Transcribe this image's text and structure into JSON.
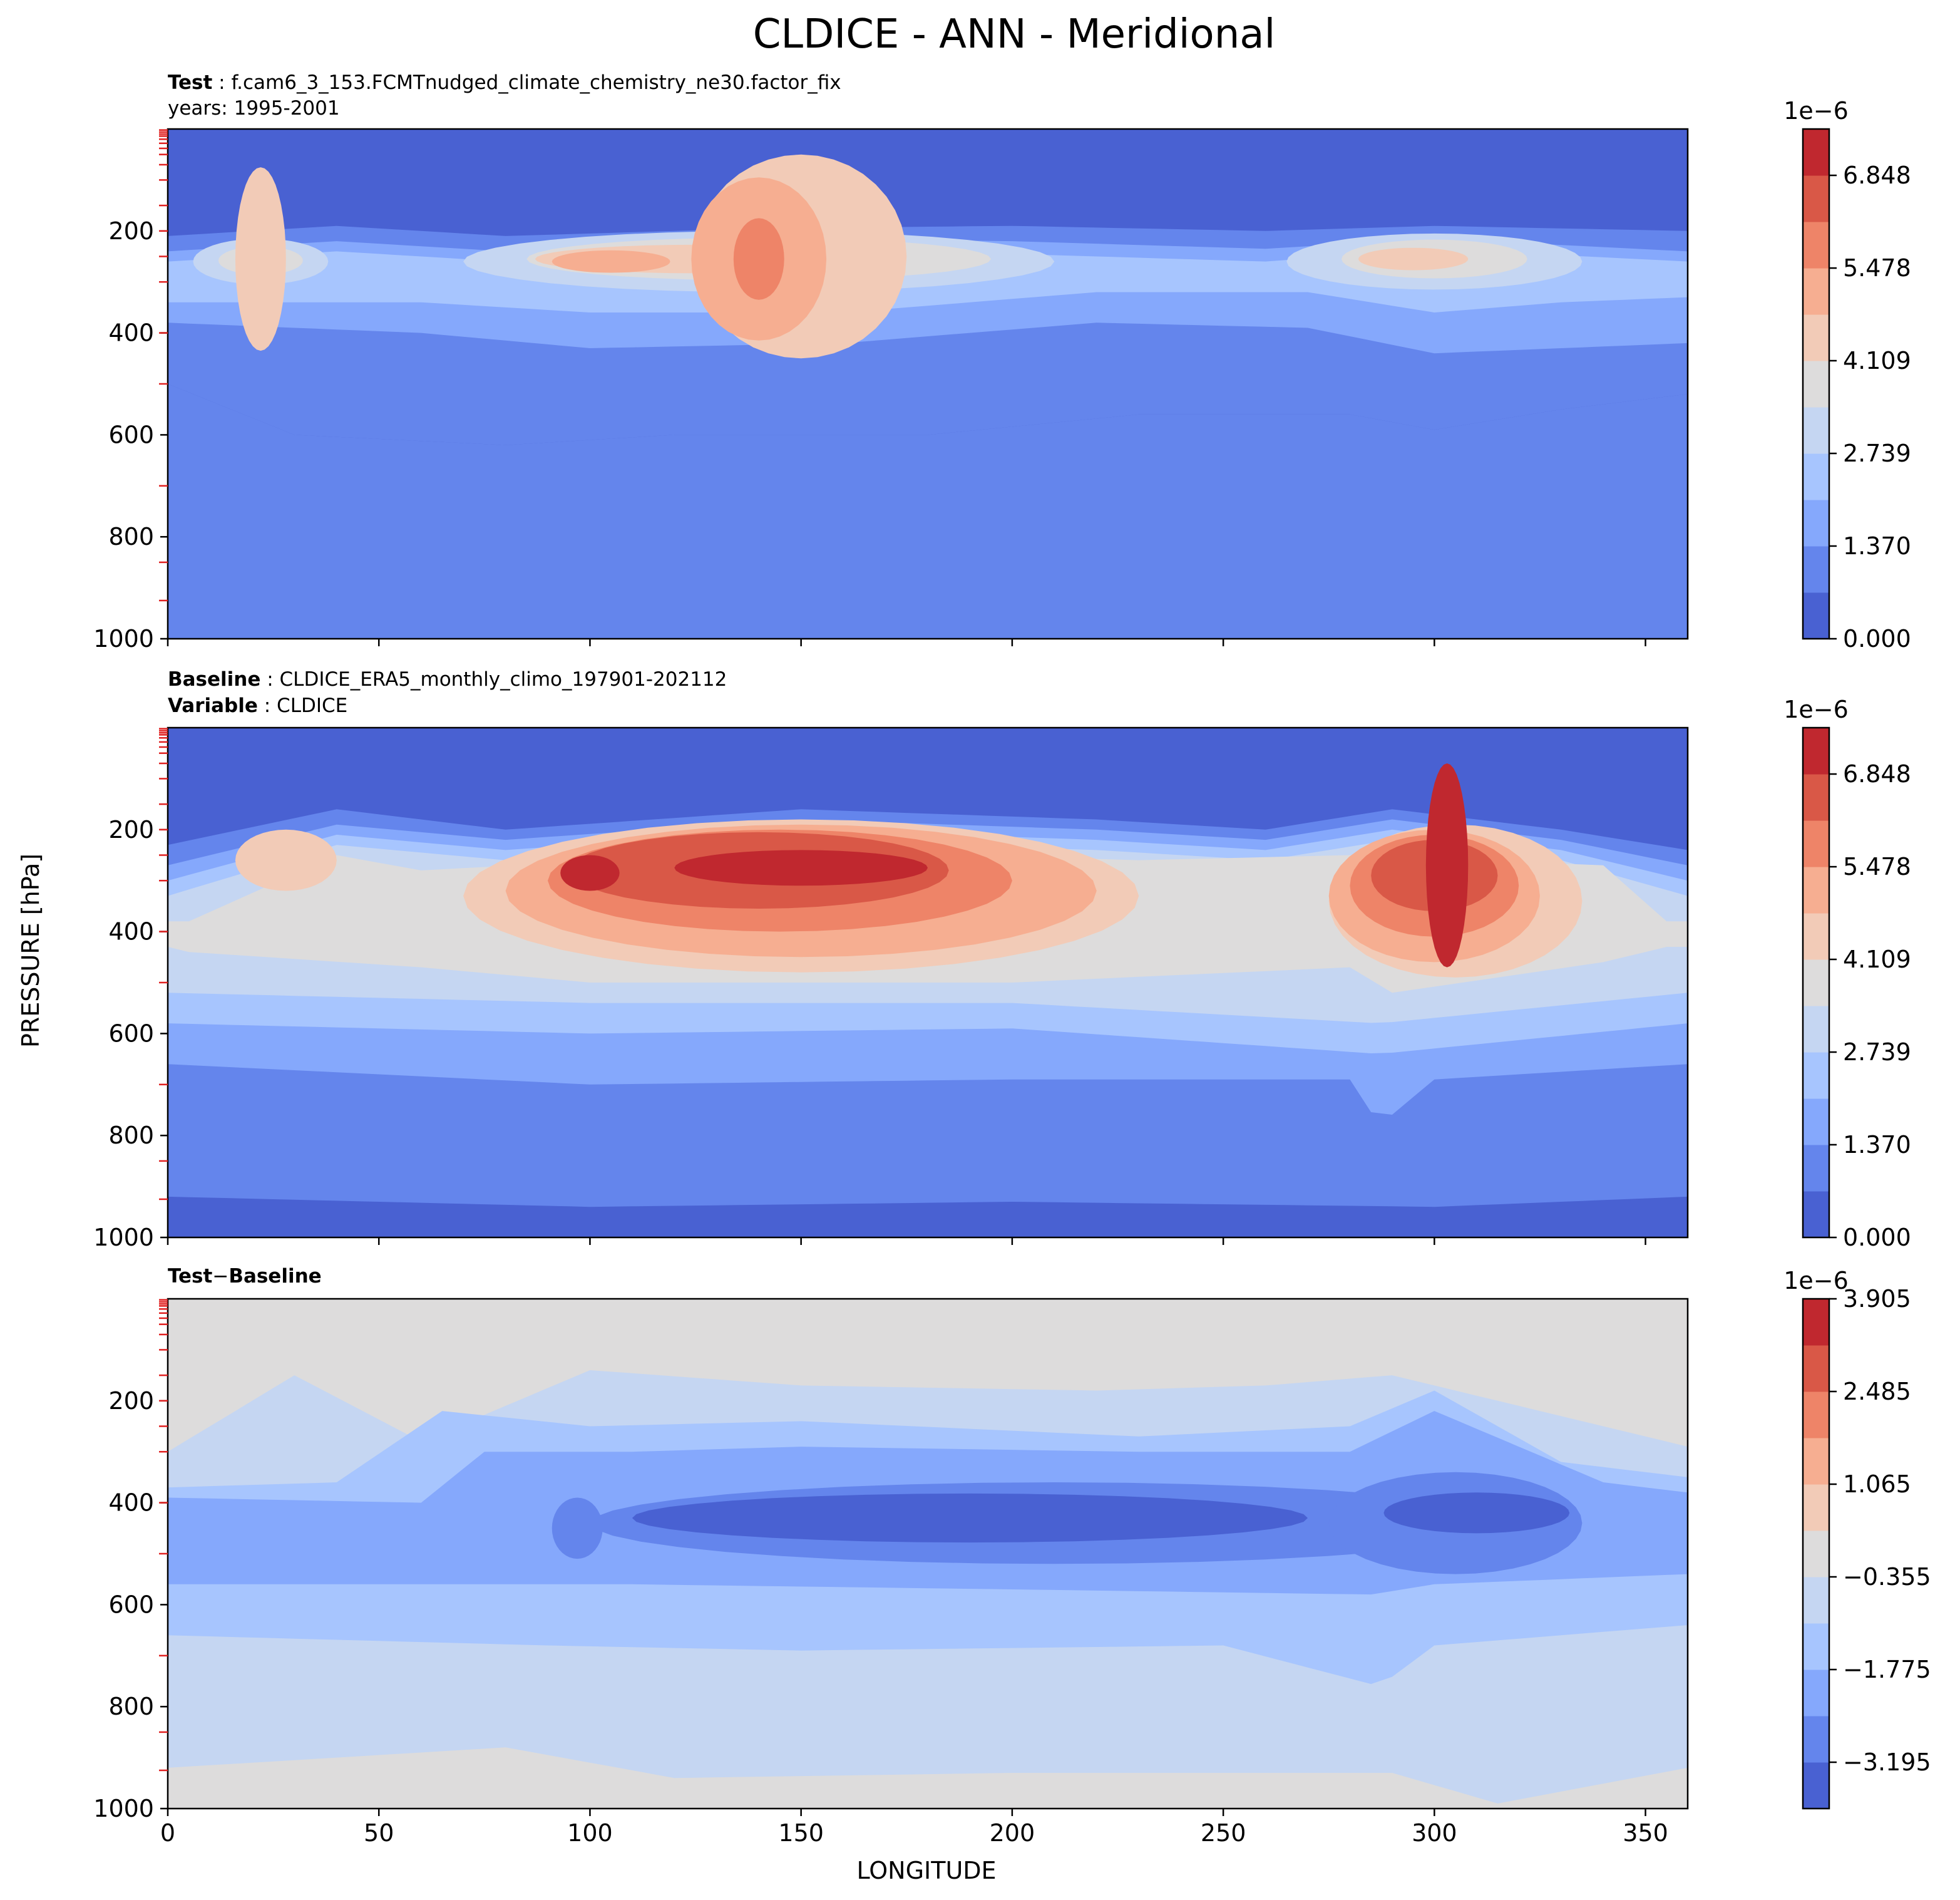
{
  "figure": {
    "title": "CLDICE - ANN - Meridional",
    "xlabel": "LONGITUDE",
    "ylabel": "PRESSURE [hPa]"
  },
  "annotations": {
    "test_label": "Test",
    "test_name": "f.cam6_3_153.FCMTnudged_climate_chemistry_ne30.factor_fix",
    "test_years": "years: 1995-2001",
    "baseline_label": "Baseline",
    "baseline_name": "CLDICE_ERA5_monthly_climo_197901-202112",
    "variable_label": "Variable",
    "variable_name": "CLDICE",
    "diff_test": "Test",
    "diff_minus": "−",
    "diff_baseline": "Baseline"
  },
  "colorbars": [
    {
      "exponent": "1e−6",
      "ticks": [
        "0.000",
        "1.370",
        "2.739",
        "4.109",
        "5.478",
        "6.848"
      ]
    },
    {
      "exponent": "1e−6",
      "ticks": [
        "0.000",
        "1.370",
        "2.739",
        "4.109",
        "5.478",
        "6.848"
      ]
    },
    {
      "exponent": "1e−6",
      "ticks": [
        "−3.195",
        "−1.775",
        "−0.355",
        "1.065",
        "2.485",
        "3.905"
      ]
    }
  ],
  "chart_data": [
    {
      "type": "heatmap",
      "panel": "Test",
      "x_ticks": [
        "0",
        "50",
        "100",
        "150",
        "200",
        "250",
        "300",
        "350"
      ],
      "y_ticks": [
        "200",
        "400",
        "600",
        "800",
        "1000"
      ],
      "xlim": [
        0,
        360
      ],
      "ylim": [
        1000,
        0
      ],
      "levels": [
        0.0,
        0.685,
        1.37,
        2.054,
        2.739,
        3.424,
        4.109,
        4.793,
        5.478,
        6.163,
        6.848,
        7.533
      ],
      "level_units": "1e-6",
      "colormap": "coolwarm",
      "colors": [
        "#4961d2",
        "#6485ec",
        "#85a8fc",
        "#a7c5fe",
        "#c5d6f2",
        "#dddcdc",
        "#f2cbb7",
        "#f6ae91",
        "#ee8468",
        "#d95847",
        "#c0282f"
      ]
    },
    {
      "type": "heatmap",
      "panel": "Baseline",
      "x_ticks": [
        "0",
        "50",
        "100",
        "150",
        "200",
        "250",
        "300",
        "350"
      ],
      "y_ticks": [
        "200",
        "400",
        "600",
        "800",
        "1000"
      ],
      "xlim": [
        0,
        360
      ],
      "ylim": [
        1000,
        0
      ],
      "levels": [
        0.0,
        0.685,
        1.37,
        2.054,
        2.739,
        3.424,
        4.109,
        4.793,
        5.478,
        6.163,
        6.848,
        7.533
      ],
      "level_units": "1e-6",
      "colormap": "coolwarm",
      "colors": [
        "#4961d2",
        "#6485ec",
        "#85a8fc",
        "#a7c5fe",
        "#c5d6f2",
        "#dddcdc",
        "#f2cbb7",
        "#f6ae91",
        "#ee8468",
        "#d95847",
        "#c0282f"
      ]
    },
    {
      "type": "heatmap",
      "panel": "Test − Baseline",
      "x_ticks": [
        "0",
        "50",
        "100",
        "150",
        "200",
        "250",
        "300",
        "350"
      ],
      "y_ticks": [
        "200",
        "400",
        "600",
        "800",
        "1000"
      ],
      "xlim": [
        0,
        360
      ],
      "ylim": [
        1000,
        0
      ],
      "levels": [
        -3.905,
        -3.195,
        -2.485,
        -1.775,
        -1.065,
        -0.355,
        0.355,
        1.065,
        1.775,
        2.485,
        3.195,
        3.905
      ],
      "level_units": "1e-6",
      "colormap": "coolwarm",
      "colors": [
        "#4961d2",
        "#6485ec",
        "#85a8fc",
        "#a7c5fe",
        "#c5d6f2",
        "#dddcdc",
        "#f2cbb7",
        "#f6ae91",
        "#ee8468",
        "#d95847",
        "#c0282f"
      ]
    }
  ]
}
